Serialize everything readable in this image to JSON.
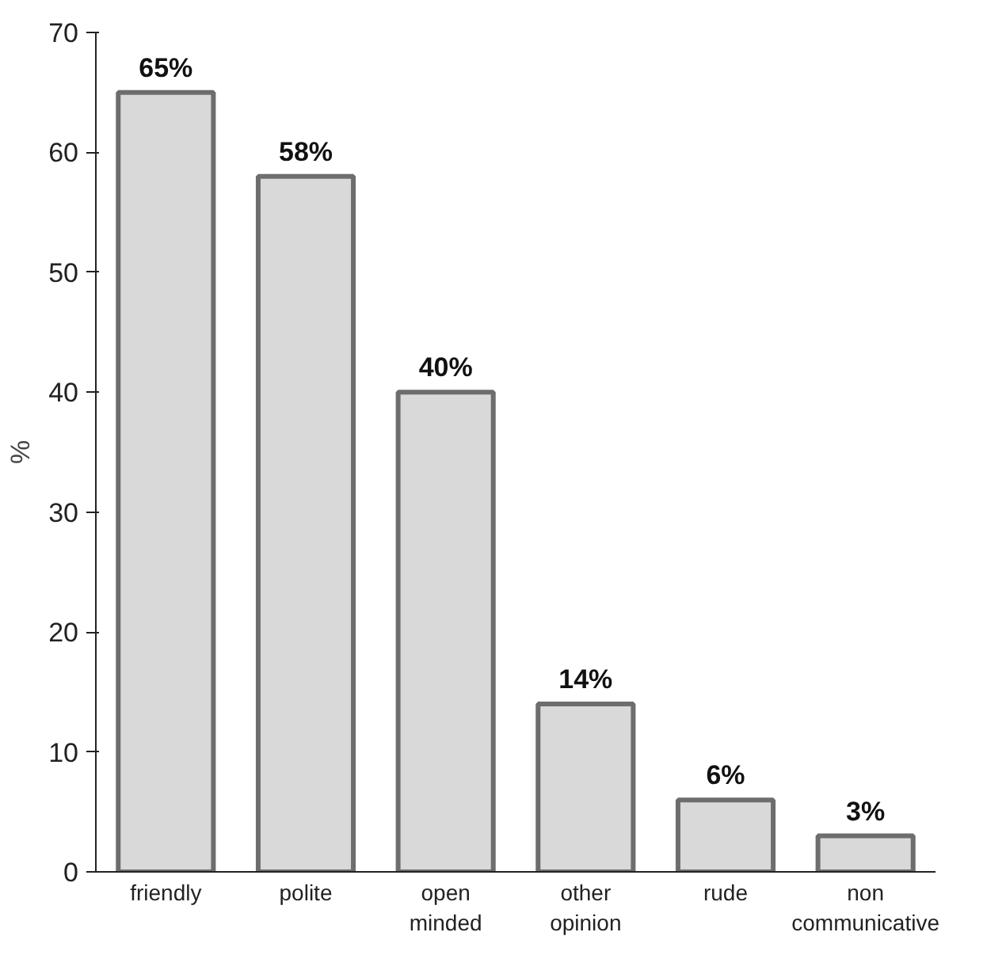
{
  "chart_data": {
    "type": "bar",
    "ylabel": "%",
    "categories": [
      "friendly",
      "polite",
      "open\nminded",
      "other\nopinion",
      "rude",
      "non\ncommunicative"
    ],
    "values": [
      65,
      58,
      40,
      14,
      6,
      3
    ],
    "value_labels": [
      "65%",
      "58%",
      "40%",
      "14%",
      "6%",
      "3%"
    ],
    "color": "#d9d9d9",
    "ylim": [
      0,
      70
    ],
    "yticks": [
      0,
      10,
      20,
      30,
      40,
      50,
      60,
      70
    ],
    "grid": false
  }
}
